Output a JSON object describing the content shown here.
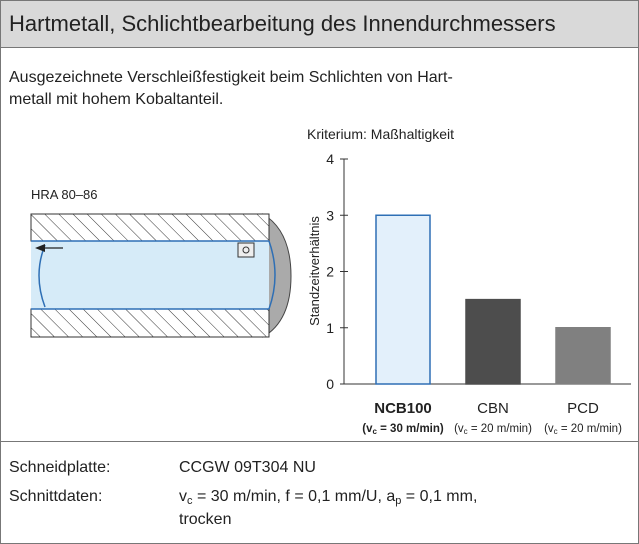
{
  "header": {
    "title": "Hartmetall, Schlichtbearbeitung des Innendurchmessers"
  },
  "description": {
    "lines": [
      "Ausgezeichnete Verschleißfestigkeit beim Schlichten von Hart-",
      "metall mit hohem Kobaltanteil."
    ]
  },
  "illustration": {
    "label": "HRA 80–86"
  },
  "chart_data": {
    "type": "bar",
    "subtitle": "Kriterium:  Maßhaltigkeit",
    "y_label": "Standzeitverhältnis",
    "categories": [
      "NCB100",
      "CBN",
      "PCD"
    ],
    "category_notes": [
      [
        {
          "text": "(v"
        },
        {
          "sub": "c"
        },
        {
          "text": " = 30 m/min)"
        }
      ],
      [
        {
          "text": "(v"
        },
        {
          "sub": "c"
        },
        {
          "text": " = 20 m/min)"
        }
      ],
      [
        {
          "text": "(v"
        },
        {
          "sub": "c"
        },
        {
          "text": " = 20 m/min)"
        }
      ]
    ],
    "values": [
      3,
      1.5,
      1
    ],
    "colors": [
      "#e3f0fb",
      "#4d4d4d",
      "#808080"
    ],
    "ylim": [
      0,
      4
    ],
    "yticks": [
      0,
      1,
      2,
      3,
      4
    ]
  },
  "specs": [
    {
      "label": "Schneidplatte:",
      "lines": [
        [
          {
            "text": "CCGW 09T304 NU"
          }
        ]
      ]
    },
    {
      "label": "Schnittdaten:",
      "lines": [
        [
          {
            "text": "v"
          },
          {
            "sub": "c"
          },
          {
            "text": " = 30 m/min, f = 0,1 mm/U, a"
          },
          {
            "sub": "p"
          },
          {
            "text": " = 0,1 mm,"
          }
        ],
        [
          {
            "text": "trocken"
          }
        ]
      ]
    }
  ]
}
